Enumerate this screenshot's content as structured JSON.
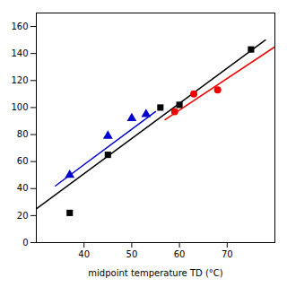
{
  "chart_data": {
    "type": "scatter",
    "xlabel": "midpoint temperature TD (°C)",
    "xlim": [
      30,
      80
    ],
    "ylim": [
      0,
      170
    ],
    "xticks": [
      40,
      50,
      60,
      70
    ],
    "yticks": [
      0,
      20,
      40,
      60,
      80,
      100,
      120,
      140,
      160
    ],
    "grid": false,
    "series": [
      {
        "type": "line",
        "color": "#000000",
        "x": [
          30,
          78
        ],
        "values": [
          25,
          150
        ]
      },
      {
        "type": "line",
        "color": "#0000cc",
        "x": [
          34,
          55
        ],
        "values": [
          42,
          97
        ]
      },
      {
        "type": "line",
        "color": "#ee0000",
        "x": [
          57,
          80
        ],
        "values": [
          91,
          145
        ]
      },
      {
        "type": "scatter",
        "color": "#000000",
        "marker": "square",
        "x": [
          37,
          45,
          56,
          60,
          75
        ],
        "values": [
          22,
          65,
          100,
          102,
          143
        ]
      },
      {
        "type": "scatter",
        "color": "#0000cc",
        "marker": "triangle",
        "x": [
          37,
          45,
          50,
          53
        ],
        "values": [
          50,
          79,
          92,
          95
        ]
      },
      {
        "type": "scatter",
        "color": "#ee0000",
        "marker": "circle",
        "x": [
          59,
          63,
          68
        ],
        "values": [
          97,
          110,
          113
        ]
      }
    ]
  }
}
